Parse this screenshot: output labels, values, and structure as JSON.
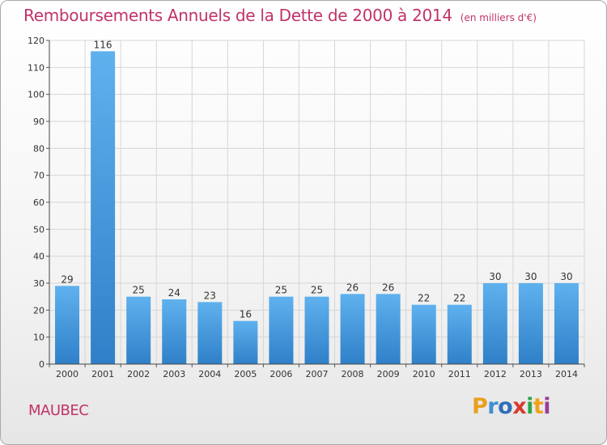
{
  "title": "Remboursements Annuels de la Dette de 2000 à 2014",
  "unit_note": "(en milliers d'€)",
  "commune": "MAUBEC",
  "logo": {
    "text": "Proxiti",
    "colors": [
      "#e8a120",
      "#3f8fd4",
      "#2f6fb8",
      "#d93a2f",
      "#2ea54a",
      "#f0a21b",
      "#9c3b9c"
    ]
  },
  "chart_data": {
    "type": "bar",
    "title": "Remboursements Annuels de la Dette de 2000 à 2014",
    "xlabel": "",
    "ylabel": "",
    "categories": [
      "2000",
      "2001",
      "2002",
      "2003",
      "2004",
      "2005",
      "2006",
      "2007",
      "2008",
      "2009",
      "2010",
      "2011",
      "2012",
      "2013",
      "2014"
    ],
    "values": [
      29,
      116,
      25,
      24,
      23,
      16,
      25,
      25,
      26,
      26,
      22,
      22,
      30,
      30,
      30
    ],
    "data_labels": [
      "29",
      "116",
      "25",
      "24",
      "23",
      "16",
      "25",
      "25",
      "26",
      "26",
      "22",
      "22",
      "30",
      "30",
      "30"
    ],
    "ylim": [
      0,
      120
    ],
    "yticks": [
      0,
      10,
      20,
      30,
      40,
      50,
      60,
      70,
      80,
      90,
      100,
      110,
      120
    ],
    "grid": true,
    "legend": "none",
    "bar_color": "#4fa3e6"
  }
}
